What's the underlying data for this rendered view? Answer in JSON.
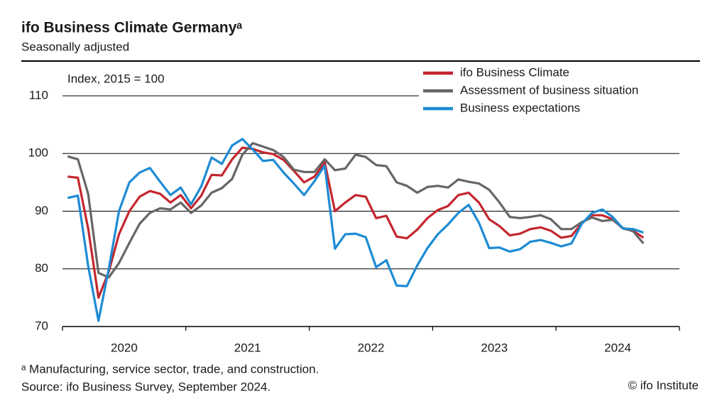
{
  "chart_data": {
    "type": "line",
    "title": "ifo Business Climate Germanyᵃ",
    "subtitle": "Seasonally adjusted",
    "y_label": "Index, 2015 = 100",
    "footnote": "ᵃ Manufacturing, service sector, trade, and construction.",
    "source": "Source: ifo Business Survey, September 2024.",
    "credit": "© ifo Institute",
    "xlim": [
      2020,
      2025
    ],
    "xticks": [
      {
        "value": 2020.5,
        "label": "2020"
      },
      {
        "value": 2021.5,
        "label": "2021"
      },
      {
        "value": 2022.5,
        "label": "2022"
      },
      {
        "value": 2023.5,
        "label": "2023"
      },
      {
        "value": 2024.5,
        "label": "2024"
      }
    ],
    "xtick_marks": [
      2020,
      2021,
      2022,
      2023,
      2024,
      2025
    ],
    "ylim": [
      70,
      110
    ],
    "yticks": [
      70,
      80,
      90,
      100,
      110
    ],
    "grid": true,
    "legend": "top-right",
    "x": [
      2020.042,
      2020.125,
      2020.208,
      2020.292,
      2020.375,
      2020.458,
      2020.542,
      2020.625,
      2020.708,
      2020.792,
      2020.875,
      2020.958,
      2021.042,
      2021.125,
      2021.208,
      2021.292,
      2021.375,
      2021.458,
      2021.542,
      2021.625,
      2021.708,
      2021.792,
      2021.875,
      2021.958,
      2022.042,
      2022.125,
      2022.208,
      2022.292,
      2022.375,
      2022.458,
      2022.542,
      2022.625,
      2022.708,
      2022.792,
      2022.875,
      2022.958,
      2023.042,
      2023.125,
      2023.208,
      2023.292,
      2023.375,
      2023.458,
      2023.542,
      2023.625,
      2023.708,
      2023.792,
      2023.875,
      2023.958,
      2024.042,
      2024.125,
      2024.208,
      2024.292,
      2024.375,
      2024.458,
      2024.542,
      2024.625,
      2024.708
    ],
    "series": [
      {
        "name": "ifo Business Climate",
        "color": "#c4262e",
        "values": [
          96,
          95.8,
          87,
          75,
          79.5,
          86,
          90,
          92.5,
          93.5,
          93,
          91.5,
          92.8,
          90.5,
          92.7,
          96.3,
          96.2,
          99,
          101,
          100.8,
          100.2,
          99.9,
          98.9,
          97,
          95,
          96,
          98.5,
          90,
          91.5,
          92.8,
          92.5,
          88.8,
          89.2,
          85.6,
          85.3,
          86.8,
          88.8,
          90.2,
          90.9,
          92.8,
          93.2,
          91.5,
          88.6,
          87.4,
          85.8,
          86.1,
          86.9,
          87.2,
          86.6,
          85.4,
          85.7,
          87.9,
          89.3,
          89.3,
          88.6,
          87,
          86.6,
          85.4
        ]
      },
      {
        "name": "Assessment of business situation",
        "color": "#666666",
        "values": [
          99.5,
          99,
          93,
          79.3,
          78.5,
          81,
          84.5,
          87.8,
          89.7,
          90.5,
          90.3,
          91.5,
          89.7,
          91,
          93.2,
          94,
          95.6,
          99.8,
          101.8,
          101.2,
          100.6,
          99.4,
          97.2,
          96.8,
          96.8,
          99,
          97.1,
          97.4,
          99.8,
          99.4,
          98,
          97.8,
          95,
          94.4,
          93.2,
          94.2,
          94.4,
          94.1,
          95.5,
          95.1,
          94.8,
          93.7,
          91.5,
          89,
          88.8,
          89,
          89.3,
          88.6,
          86.9,
          86.9,
          88.1,
          88.9,
          88.3,
          88.5,
          87.1,
          86.5,
          84.4
        ]
      },
      {
        "name": "Business expectations",
        "color": "#1d8bd4",
        "values": [
          92.3,
          92.7,
          80.5,
          71,
          80,
          90,
          95,
          96.7,
          97.5,
          95.1,
          92.8,
          94.1,
          91.2,
          94.3,
          99.3,
          98.2,
          101.4,
          102.5,
          100.7,
          98.7,
          98.9,
          96.7,
          94.8,
          92.8,
          95.2,
          97.9,
          83.5,
          86,
          86.1,
          85.5,
          80.3,
          81.5,
          77.1,
          77,
          80.6,
          83.6,
          86,
          87.7,
          89.7,
          91.1,
          88,
          83.6,
          83.7,
          83,
          83.4,
          84.7,
          85,
          84.5,
          83.9,
          84.4,
          87.8,
          89.7,
          90.3,
          89,
          87,
          86.9,
          86.3
        ]
      }
    ]
  }
}
